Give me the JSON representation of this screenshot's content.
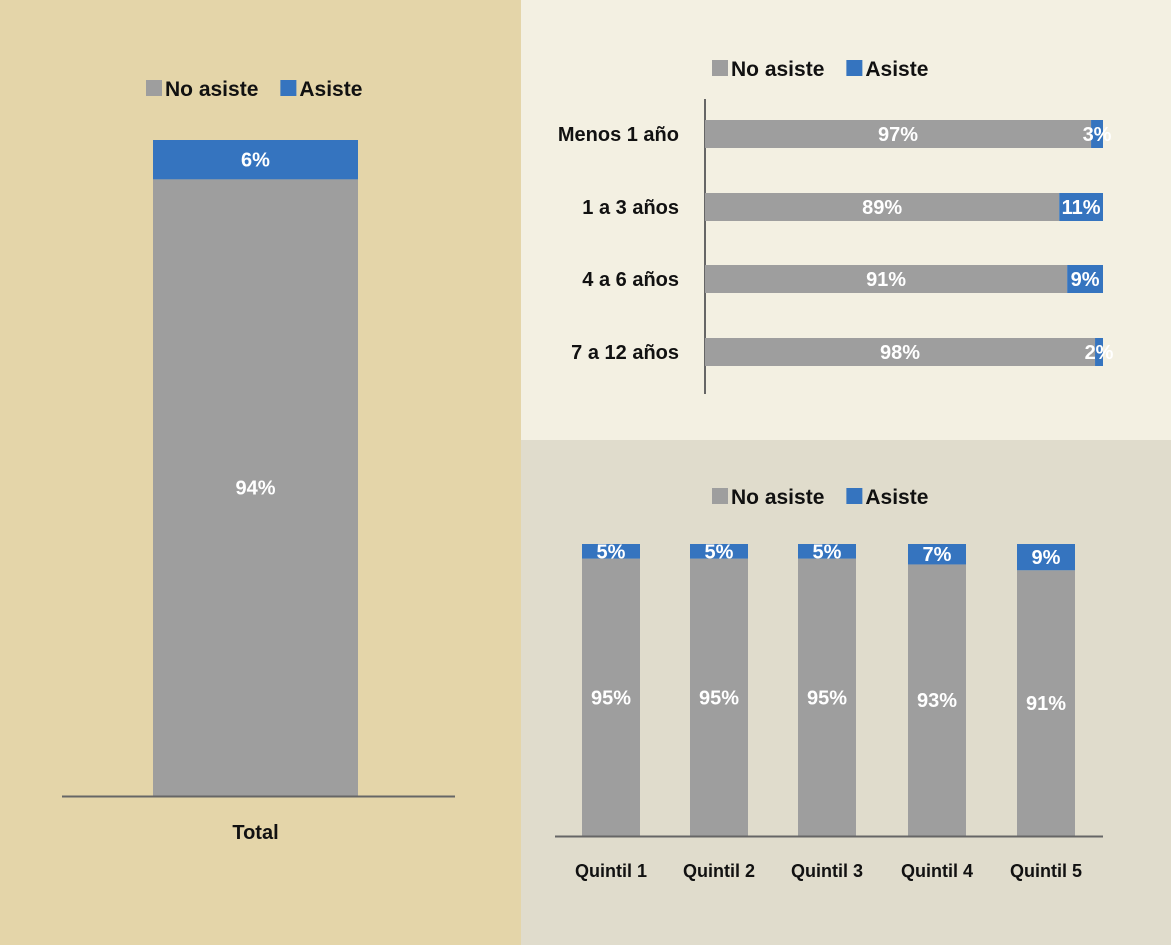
{
  "colors": {
    "no_asiste": "#9e9e9e",
    "asiste": "#3574bf",
    "axis": "#666666"
  },
  "chart_data": [
    {
      "type": "bar",
      "orientation": "vertical",
      "stacked": true,
      "categories": [
        "Total"
      ],
      "series": [
        {
          "name": "No asiste",
          "values": [
            94
          ]
        },
        {
          "name": "Asiste",
          "values": [
            6
          ]
        }
      ],
      "data_labels": [
        [
          "94%"
        ],
        [
          "6%"
        ]
      ],
      "ylim": [
        0,
        100
      ],
      "legend": {
        "position": "top",
        "labels": [
          "No asiste",
          "Asiste"
        ]
      },
      "grid": false
    },
    {
      "type": "bar",
      "orientation": "horizontal",
      "stacked": true,
      "categories": [
        "Menos 1 año",
        "1 a 3 años",
        "4 a 6 años",
        "7 a 12 años"
      ],
      "series": [
        {
          "name": "No asiste",
          "values": [
            97,
            89,
            91,
            98
          ]
        },
        {
          "name": "Asiste",
          "values": [
            3,
            11,
            9,
            2
          ]
        }
      ],
      "data_labels": [
        [
          "97%",
          "89%",
          "91%",
          "98%"
        ],
        [
          "3%",
          "11%",
          "9%",
          "2%"
        ]
      ],
      "xlim": [
        0,
        100
      ],
      "legend": {
        "position": "top",
        "labels": [
          "No asiste",
          "Asiste"
        ]
      },
      "grid": false
    },
    {
      "type": "bar",
      "orientation": "vertical",
      "stacked": true,
      "categories": [
        "Quintil 1",
        "Quintil 2",
        "Quintil 3",
        "Quintil 4",
        "Quintil 5"
      ],
      "series": [
        {
          "name": "No asiste",
          "values": [
            95,
            95,
            95,
            93,
            91
          ]
        },
        {
          "name": "Asiste",
          "values": [
            5,
            5,
            5,
            7,
            9
          ]
        }
      ],
      "data_labels": [
        [
          "95%",
          "95%",
          "95%",
          "93%",
          "91%"
        ],
        [
          "5%",
          "5%",
          "5%",
          "7%",
          "9%"
        ]
      ],
      "ylim": [
        0,
        100
      ],
      "legend": {
        "position": "top",
        "labels": [
          "No asiste",
          "Asiste"
        ]
      },
      "grid": false
    }
  ]
}
